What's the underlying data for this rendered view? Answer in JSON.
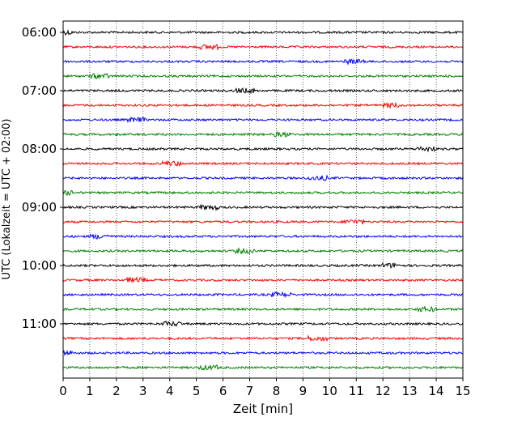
{
  "chart_data": {
    "type": "line",
    "title": "",
    "xlabel": "Zeit  [min]",
    "ylabel": "UTC (Lokalzeit = UTC + 02:00)",
    "xlim": [
      0,
      15
    ],
    "x_ticks": [
      "0",
      "1",
      "2",
      "3",
      "4",
      "5",
      "6",
      "7",
      "8",
      "9",
      "10",
      "11",
      "12",
      "13",
      "14",
      "15"
    ],
    "y_ticks": [
      "06:00",
      "07:00",
      "08:00",
      "09:00",
      "10:00",
      "11:00"
    ],
    "grid": "vertical dotted",
    "series_colors": [
      "#000000",
      "#ff0000",
      "#0000ff",
      "#007f00"
    ],
    "rows": [
      {
        "hour_offset": 0.0,
        "color": "#000000"
      },
      {
        "hour_offset": 0.25,
        "color": "#ff0000"
      },
      {
        "hour_offset": 0.5,
        "color": "#0000ff"
      },
      {
        "hour_offset": 0.75,
        "color": "#007f00"
      },
      {
        "hour_offset": 1.0,
        "color": "#000000"
      },
      {
        "hour_offset": 1.25,
        "color": "#ff0000"
      },
      {
        "hour_offset": 1.5,
        "color": "#0000ff"
      },
      {
        "hour_offset": 1.75,
        "color": "#007f00"
      },
      {
        "hour_offset": 2.0,
        "color": "#000000"
      },
      {
        "hour_offset": 2.25,
        "color": "#ff0000"
      },
      {
        "hour_offset": 2.5,
        "color": "#0000ff"
      },
      {
        "hour_offset": 2.75,
        "color": "#007f00"
      },
      {
        "hour_offset": 3.0,
        "color": "#000000"
      },
      {
        "hour_offset": 3.25,
        "color": "#ff0000"
      },
      {
        "hour_offset": 3.5,
        "color": "#0000ff"
      },
      {
        "hour_offset": 3.75,
        "color": "#007f00"
      },
      {
        "hour_offset": 4.0,
        "color": "#000000"
      },
      {
        "hour_offset": 4.25,
        "color": "#ff0000"
      },
      {
        "hour_offset": 4.5,
        "color": "#0000ff"
      },
      {
        "hour_offset": 4.75,
        "color": "#007f00"
      },
      {
        "hour_offset": 5.0,
        "color": "#000000"
      },
      {
        "hour_offset": 5.25,
        "color": "#ff0000"
      },
      {
        "hour_offset": 5.5,
        "color": "#0000ff"
      },
      {
        "hour_offset": 5.75,
        "color": "#007f00"
      }
    ]
  }
}
